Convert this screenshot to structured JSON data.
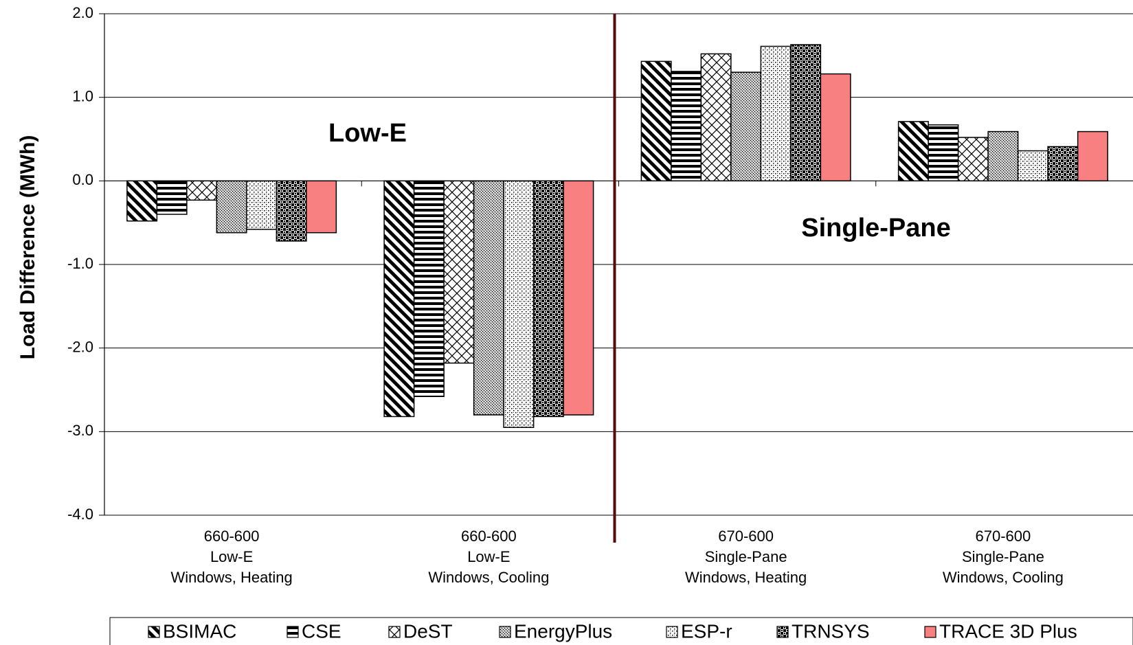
{
  "chart_data": {
    "type": "bar",
    "title": "",
    "ylabel": "Load Difference (MWh)",
    "xlabel": "",
    "ylim": [
      -4.0,
      2.0
    ],
    "yticks": [
      2.0,
      1.0,
      0.0,
      -1.0,
      -2.0,
      -3.0,
      -4.0
    ],
    "ytick_labels": [
      "2.0",
      "1.0",
      "0.0",
      "-1.0",
      "-2.0",
      "-3.0",
      "-4.0"
    ],
    "grid": true,
    "legend_position": "bottom",
    "categories": [
      [
        "660-600",
        "Low-E",
        "Windows, Heating"
      ],
      [
        "660-600",
        "Low-E",
        "Windows, Cooling"
      ],
      [
        "670-600",
        "Single-Pane",
        "Windows, Heating"
      ],
      [
        "670-600",
        "Single-Pane",
        "Windows, Cooling"
      ]
    ],
    "series": [
      {
        "name": "BSIMAC",
        "pattern": "diagonal",
        "values": [
          -0.48,
          -2.82,
          1.43,
          0.71
        ]
      },
      {
        "name": "CSE",
        "pattern": "horizontal",
        "values": [
          -0.4,
          -2.58,
          1.31,
          0.67
        ]
      },
      {
        "name": "DeST",
        "pattern": "crosshatch",
        "values": [
          -0.23,
          -2.18,
          1.52,
          0.52
        ]
      },
      {
        "name": "EnergyPlus",
        "pattern": "dots",
        "values": [
          -0.62,
          -2.8,
          1.3,
          0.59
        ]
      },
      {
        "name": "ESP-r",
        "pattern": "stipple",
        "values": [
          -0.58,
          -2.95,
          1.61,
          0.36
        ]
      },
      {
        "name": "TRNSYS",
        "pattern": "checker",
        "values": [
          -0.72,
          -2.82,
          1.63,
          0.41
        ]
      },
      {
        "name": "TRACE 3D Plus",
        "pattern": "solid",
        "color": "#f88080",
        "values": [
          -0.62,
          -2.8,
          1.28,
          0.59
        ]
      }
    ],
    "annotations": [
      "Low-E",
      "Single-Pane"
    ],
    "divider_color": "#5a0a0a"
  }
}
